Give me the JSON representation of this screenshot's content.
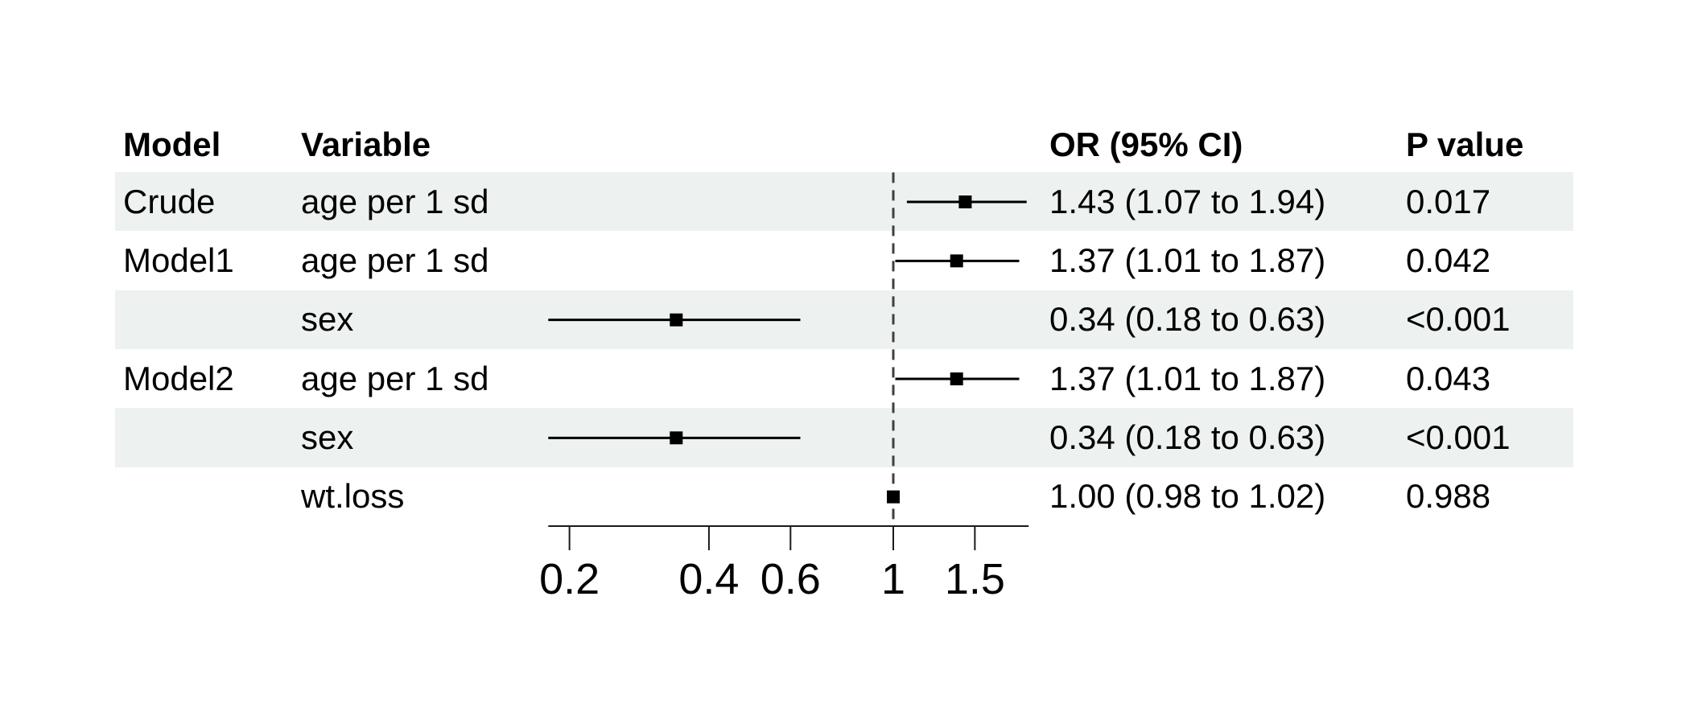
{
  "chart_data": {
    "type": "forest",
    "title": "",
    "columns": [
      "Model",
      "Variable",
      "OR (95% CI)",
      "P value"
    ],
    "rows": [
      {
        "model": "Crude",
        "variable": "age per 1 sd",
        "est": 1.43,
        "lo": 1.07,
        "hi": 1.94,
        "or_ci": "1.43 (1.07 to 1.94)",
        "p": "0.017",
        "shaded": true
      },
      {
        "model": "Model1",
        "variable": "age per 1 sd",
        "est": 1.37,
        "lo": 1.01,
        "hi": 1.87,
        "or_ci": "1.37 (1.01 to 1.87)",
        "p": "0.042",
        "shaded": false
      },
      {
        "model": "",
        "variable": "sex",
        "est": 0.34,
        "lo": 0.18,
        "hi": 0.63,
        "or_ci": "0.34 (0.18 to 0.63)",
        "p": "<0.001",
        "shaded": true
      },
      {
        "model": "Model2",
        "variable": "age per 1 sd",
        "est": 1.37,
        "lo": 1.01,
        "hi": 1.87,
        "or_ci": "1.37 (1.01 to 1.87)",
        "p": "0.043",
        "shaded": false
      },
      {
        "model": "",
        "variable": "sex",
        "est": 0.34,
        "lo": 0.18,
        "hi": 0.63,
        "or_ci": "0.34 (0.18 to 0.63)",
        "p": "<0.001",
        "shaded": true
      },
      {
        "model": "",
        "variable": "wt.loss",
        "est": 1.0,
        "lo": 0.98,
        "hi": 1.02,
        "or_ci": "1.00 (0.98 to 1.02)",
        "p": "0.988",
        "shaded": false
      }
    ],
    "x_axis": {
      "scale": "log",
      "ticks": [
        0.2,
        0.4,
        0.6,
        1,
        1.5
      ],
      "tick_labels": [
        "0.2",
        "0.4",
        "0.6",
        "1",
        "1.5"
      ],
      "range": [
        0.18,
        1.96
      ],
      "reference_line": 1
    },
    "legend": null,
    "colors": {
      "stripe": "#edf1f0",
      "marker": "#000000",
      "line": "#000000",
      "reference_line": "#3f3f3f",
      "axis": "#1a1a1a",
      "text": "#000000"
    }
  },
  "header": {
    "model": "Model",
    "variable": "Variable",
    "or_ci": "OR (95% CI)",
    "p": "P value"
  }
}
